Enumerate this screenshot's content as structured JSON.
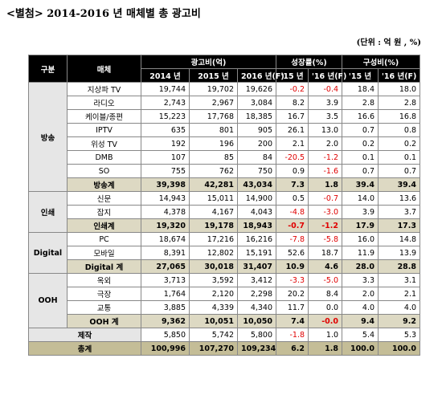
{
  "title": "<별첨> 2014-2016 년 매체별 총 광고비",
  "unit": "(단위 : 억 원 , %)",
  "table": {
    "header": {
      "group": "구분",
      "medium": "매체",
      "spend": "광고비(억)",
      "growth": "성장률(%)",
      "share": "구성비(%)",
      "spend_cols": [
        "2014 년",
        "2015 년",
        "2016 년(F)"
      ],
      "growth_cols": [
        "'15 년",
        "'16 년(F)"
      ],
      "share_cols": [
        "'15 년",
        "'16 년(F)"
      ]
    },
    "groups": [
      {
        "label": "방송",
        "rows": [
          {
            "medium": "지상파 TV",
            "values": [
              "19,744",
              "19,702",
              "19,626",
              "-0.2",
              "-0.4",
              "18.4",
              "18.0"
            ]
          },
          {
            "medium": "라디오",
            "values": [
              "2,743",
              "2,967",
              "3,084",
              "8.2",
              "3.9",
              "2.8",
              "2.8"
            ]
          },
          {
            "medium": "케이블/종편",
            "values": [
              "15,223",
              "17,768",
              "18,385",
              "16.7",
              "3.5",
              "16.6",
              "16.8"
            ]
          },
          {
            "medium": "IPTV",
            "values": [
              "635",
              "801",
              "905",
              "26.1",
              "13.0",
              "0.7",
              "0.8"
            ]
          },
          {
            "medium": "위성 TV",
            "values": [
              "192",
              "196",
              "200",
              "2.1",
              "2.0",
              "0.2",
              "0.2"
            ]
          },
          {
            "medium": "DMB",
            "values": [
              "107",
              "85",
              "84",
              "-20.5",
              "-1.2",
              "0.1",
              "0.1"
            ]
          },
          {
            "medium": "SO",
            "values": [
              "755",
              "762",
              "750",
              "0.9",
              "-1.6",
              "0.7",
              "0.7"
            ]
          }
        ],
        "subtotal": {
          "medium": "방송계",
          "values": [
            "39,398",
            "42,281",
            "43,034",
            "7.3",
            "1.8",
            "39.4",
            "39.4"
          ]
        }
      },
      {
        "label": "인쇄",
        "rows": [
          {
            "medium": "신문",
            "values": [
              "14,943",
              "15,011",
              "14,900",
              "0.5",
              "-0.7",
              "14.0",
              "13.6"
            ]
          },
          {
            "medium": "잡지",
            "values": [
              "4,378",
              "4,167",
              "4,043",
              "-4.8",
              "-3.0",
              "3.9",
              "3.7"
            ]
          }
        ],
        "subtotal": {
          "medium": "인쇄계",
          "values": [
            "19,320",
            "19,178",
            "18,943",
            "-0.7",
            "-1.2",
            "17.9",
            "17.3"
          ]
        }
      },
      {
        "label": "Digital",
        "rows": [
          {
            "medium": "PC",
            "values": [
              "18,674",
              "17,216",
              "16,216",
              "-7.8",
              "-5.8",
              "16.0",
              "14.8"
            ]
          },
          {
            "medium": "모바일",
            "values": [
              "8,391",
              "12,802",
              "15,191",
              "52.6",
              "18.7",
              "11.9",
              "13.9"
            ]
          }
        ],
        "subtotal": {
          "medium": "Digital 계",
          "values": [
            "27,065",
            "30,018",
            "31,407",
            "10.9",
            "4.6",
            "28.0",
            "28.8"
          ]
        }
      },
      {
        "label": "OOH",
        "rows": [
          {
            "medium": "옥외",
            "values": [
              "3,713",
              "3,592",
              "3,412",
              "-3.3",
              "-5.0",
              "3.3",
              "3.1"
            ]
          },
          {
            "medium": "극장",
            "values": [
              "1,764",
              "2,120",
              "2,298",
              "20.2",
              "8.4",
              "2.0",
              "2.1"
            ]
          },
          {
            "medium": "교통",
            "values": [
              "3,885",
              "4,339",
              "4,340",
              "11.7",
              "0.0",
              "4.0",
              "4.0"
            ]
          }
        ],
        "subtotal": {
          "medium": "OOH 계",
          "values": [
            "9,362",
            "10,051",
            "10,050",
            "7.4",
            "-0.0",
            "9.4",
            "9.2"
          ]
        }
      }
    ],
    "production": {
      "label": "제작",
      "values": [
        "5,850",
        "5,742",
        "5,800",
        "-1.8",
        "1.0",
        "5.4",
        "5.3"
      ]
    },
    "total": {
      "label": "총계",
      "values": [
        "100,996",
        "107,270",
        "109,234",
        "6.2",
        "1.8",
        "100.0",
        "100.0"
      ]
    }
  }
}
